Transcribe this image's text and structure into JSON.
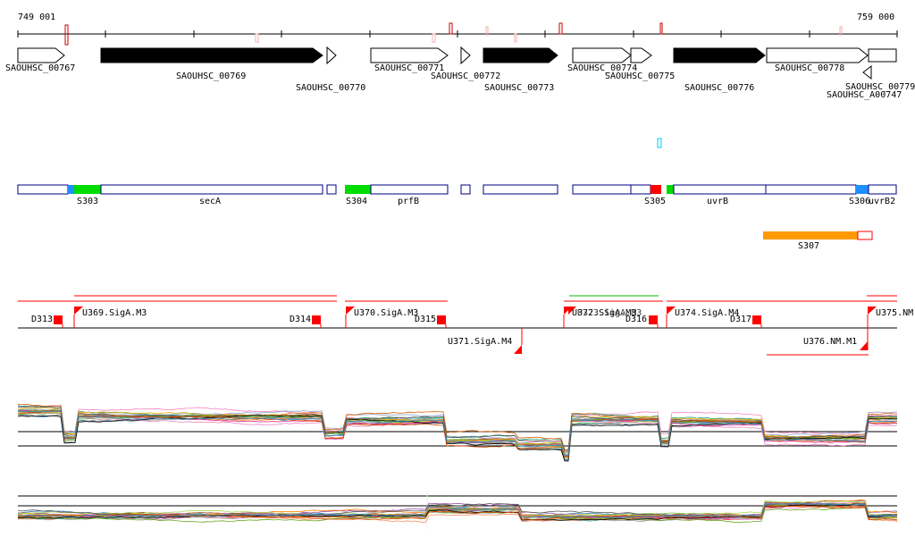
{
  "ruler": {
    "start": "749 001",
    "end": "759 000"
  },
  "genes": [
    {
      "label": "SAOUHSC_00767"
    },
    {
      "label": "SAOUHSC_00769"
    },
    {
      "label": "SAOUHSC_00770"
    },
    {
      "label": "SAOUHSC_00771"
    },
    {
      "label": "SAOUHSC_00772"
    },
    {
      "label": "SAOUHSC_00773"
    },
    {
      "label": "SAOUHSC_00774"
    },
    {
      "label": "SAOUHSC_00775"
    },
    {
      "label": "SAOUHSC_00776"
    },
    {
      "label": "SAOUHSC_00778"
    },
    {
      "label": "SAOUHSC_00779"
    },
    {
      "label": "SAOUHSC_A00747"
    }
  ],
  "segments": [
    {
      "label": "S303"
    },
    {
      "label": "secA"
    },
    {
      "label": "S304"
    },
    {
      "label": "prfB"
    },
    {
      "label": "S305"
    },
    {
      "label": "uvrB"
    },
    {
      "label": "S306"
    },
    {
      "label": "uvrB2"
    },
    {
      "label": "S307"
    }
  ],
  "regulatory": [
    {
      "label": "D313"
    },
    {
      "label": "U369.SigA.M3"
    },
    {
      "label": "D314"
    },
    {
      "label": "U370.SigA.M3"
    },
    {
      "label": "D315"
    },
    {
      "label": "U371.SigA.M4"
    },
    {
      "label": "U372.SigA.M3"
    },
    {
      "label": "U373.SigA.M3"
    },
    {
      "label": "D316"
    },
    {
      "label": "U374.SigA.M4"
    },
    {
      "label": "D317"
    },
    {
      "label": "U375.NM."
    },
    {
      "label": "U376.NM.M1"
    }
  ],
  "colors": {
    "gene_fill_dark": "#000000",
    "segment_outline": "#000080",
    "segment_green": "#00dd00",
    "segment_blue": "#1e90ff",
    "segment_red": "#ff0000",
    "segment_orange": "#ff9900",
    "promoter_red": "#ff0000",
    "cyan_marker": "#00ccff"
  }
}
